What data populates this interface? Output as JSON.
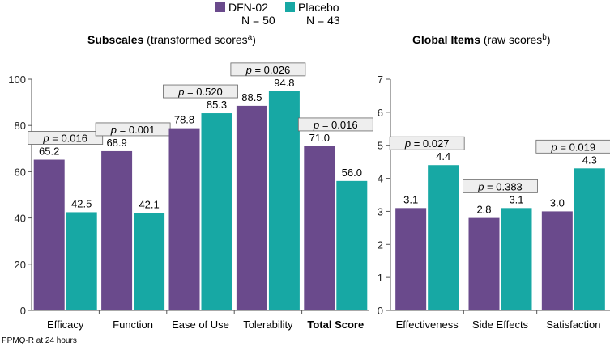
{
  "legend": {
    "items": [
      {
        "name": "DFN-02",
        "n_label": "N = 50",
        "color": "#6a4a8c"
      },
      {
        "name": "Placebo",
        "n_label": "N = 43",
        "color": "#17a8a4"
      }
    ]
  },
  "footnote": "PPMQ-R at 24 hours",
  "chart_data": [
    {
      "type": "bar",
      "title_bold": "Subscales",
      "title_rest": " (transformed scores",
      "title_sup": "a",
      "title_close": ")",
      "ylim": [
        0,
        100
      ],
      "yticks": [
        0,
        20,
        40,
        60,
        80,
        100
      ],
      "categories": [
        "Efficacy",
        "Function",
        "Ease of Use",
        "Tolerability",
        "Total Score"
      ],
      "bold_categories": [
        "Total Score"
      ],
      "series": [
        {
          "name": "DFN-02",
          "values": [
            65.2,
            68.9,
            78.8,
            88.5,
            71.0
          ],
          "labels": [
            "65.2",
            "68.9",
            "78.8",
            "88.5",
            "71.0"
          ]
        },
        {
          "name": "Placebo",
          "values": [
            42.5,
            42.1,
            85.3,
            94.8,
            56.0
          ],
          "labels": [
            "42.5",
            "42.1",
            "85.3",
            "94.8",
            "56.0"
          ]
        }
      ],
      "p_values": [
        "0.016",
        "0.001",
        "0.520",
        "0.026",
        "0.016"
      ]
    },
    {
      "type": "bar",
      "title_bold": "Global Items",
      "title_rest": " (raw scores",
      "title_sup": "b",
      "title_close": ")",
      "ylim": [
        0,
        7
      ],
      "yticks": [
        0,
        1,
        2,
        3,
        4,
        5,
        6,
        7
      ],
      "categories": [
        "Effectiveness",
        "Side Effects",
        "Satisfaction"
      ],
      "bold_categories": [],
      "series": [
        {
          "name": "DFN-02",
          "values": [
            3.1,
            2.8,
            3.0
          ],
          "labels": [
            "3.1",
            "2.8",
            "3.0"
          ]
        },
        {
          "name": "Placebo",
          "values": [
            4.4,
            3.1,
            4.3
          ],
          "labels": [
            "4.4",
            "3.1",
            "4.3"
          ]
        }
      ],
      "p_values": [
        "0.027",
        "0.383",
        "0.019"
      ]
    }
  ]
}
